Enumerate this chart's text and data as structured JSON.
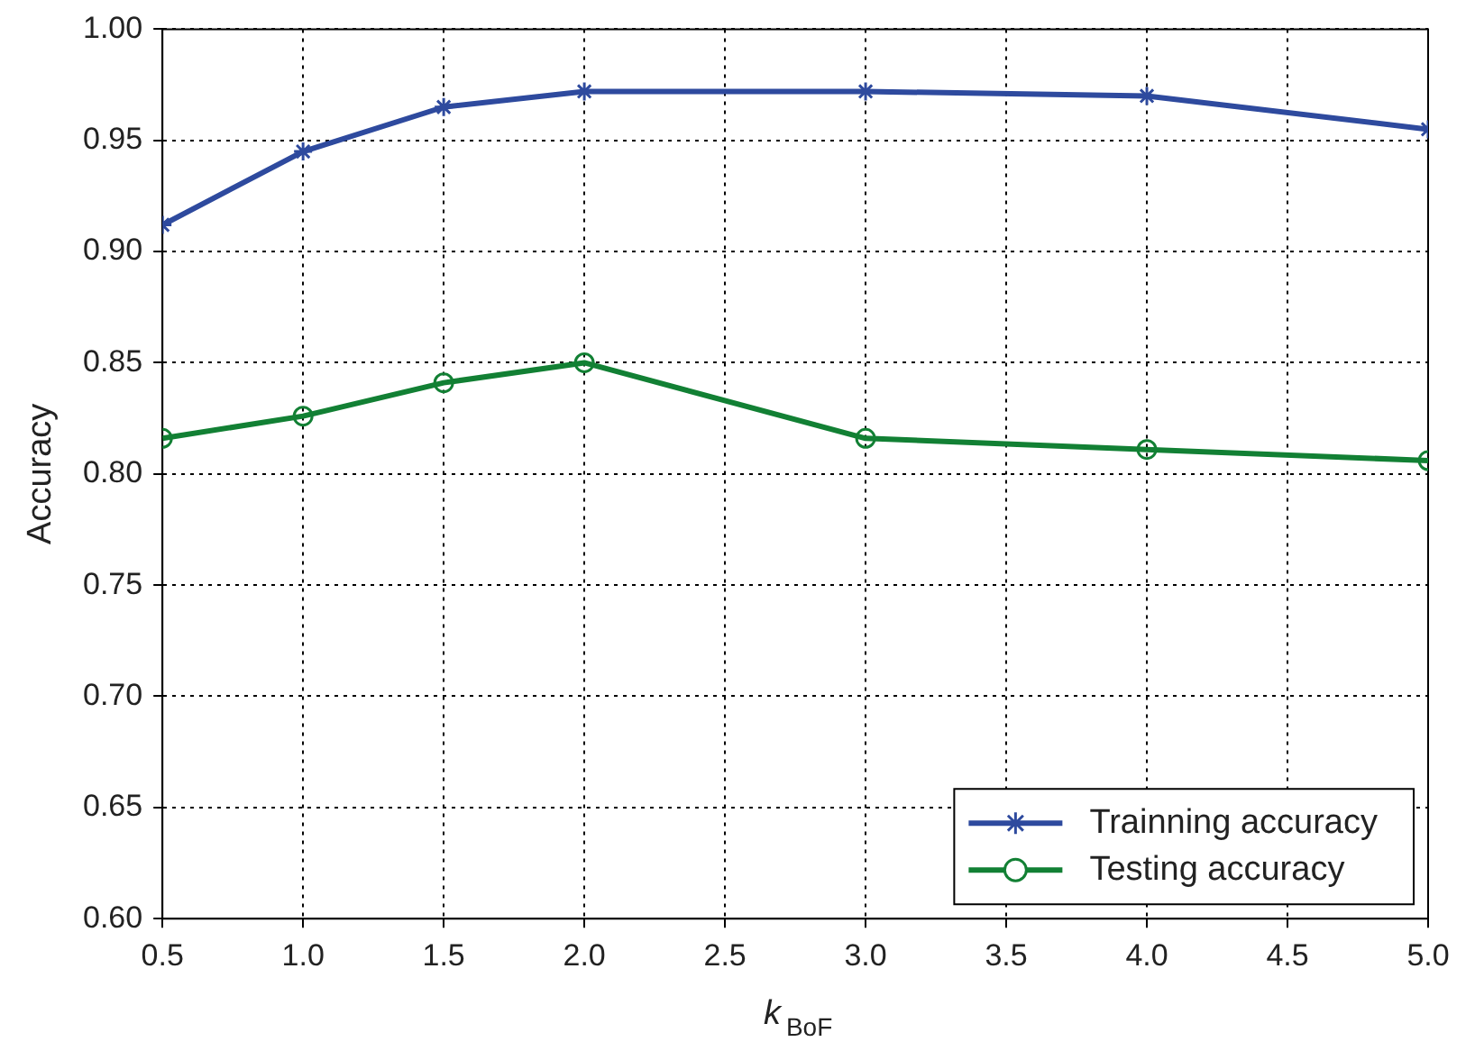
{
  "chart_data": {
    "type": "line",
    "xlabel": "k$_{BoF}$",
    "ylabel": "Accuracy",
    "x": [
      0.5,
      1.0,
      1.5,
      2.0,
      3.0,
      4.0,
      5.0
    ],
    "series": [
      {
        "name": "Trainning accuracy",
        "color": "#2e4a9e",
        "marker": "cross",
        "values": [
          0.912,
          0.945,
          0.965,
          0.972,
          0.972,
          0.97,
          0.955
        ]
      },
      {
        "name": "Testing accuracy",
        "color": "#128034",
        "marker": "circle",
        "values": [
          0.816,
          0.826,
          0.841,
          0.85,
          0.816,
          0.811,
          0.806
        ]
      }
    ],
    "xlim": [
      0.5,
      5.0
    ],
    "xticks": [
      0.5,
      {
        "value": 1,
        "label": "1.0"
      },
      1.5,
      {
        "value": 2,
        "label": "2.0"
      },
      2.5,
      {
        "value": 3,
        "label": "3.0"
      },
      3.5,
      {
        "value": 4,
        "label": "4.0"
      },
      4.5,
      {
        "value": 5,
        "label": "5.0"
      }
    ],
    "ylim": [
      0.6,
      1.0
    ],
    "yticks": [
      {
        "value": 0.6,
        "label": "0.60"
      },
      0.65,
      {
        "value": 0.7,
        "label": "0.70"
      },
      0.75,
      {
        "value": 0.8,
        "label": "0.80"
      },
      0.85,
      {
        "value": 0.9,
        "label": "0.90"
      },
      0.95,
      {
        "value": 1,
        "label": "1.00"
      }
    ],
    "grid": true,
    "legend": "bottom right",
    "line_style": "solid"
  }
}
